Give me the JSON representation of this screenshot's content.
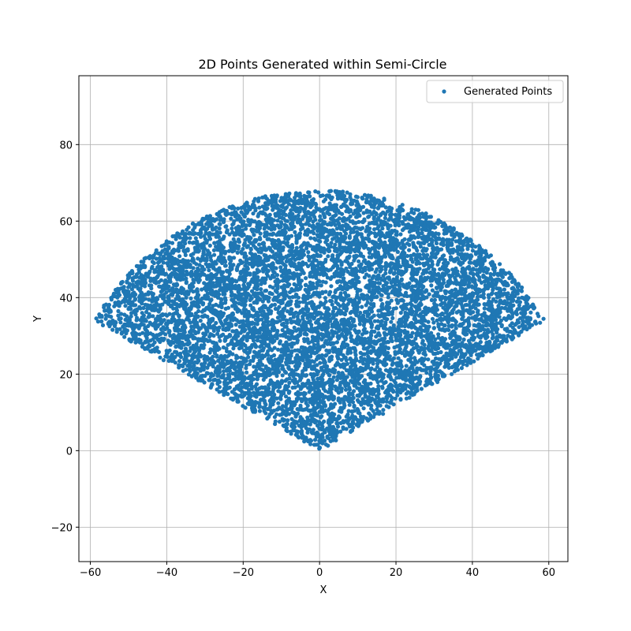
{
  "chart_data": {
    "type": "scatter",
    "title": "2D Points Generated within Semi-Circle",
    "xlabel": "X",
    "ylabel": "Y",
    "xlim": [
      -63,
      65
    ],
    "ylim": [
      -29,
      98
    ],
    "xticks": [
      -60,
      -40,
      -20,
      0,
      20,
      40,
      60
    ],
    "yticks": [
      -20,
      0,
      20,
      40,
      60,
      80
    ],
    "xtick_labels": [
      "−60",
      "−40",
      "−20",
      "0",
      "20",
      "40",
      "60"
    ],
    "ytick_labels": [
      "−20",
      "0",
      "20",
      "40",
      "60",
      "80"
    ],
    "grid": true,
    "legend_position": "upper right",
    "series": [
      {
        "name": "Generated Points",
        "color": "#1f77b4",
        "region": {
          "shape": "circular sector",
          "apex": [
            0,
            0
          ],
          "radius": 68,
          "angle_range_deg": [
            30,
            150
          ]
        },
        "point_count": 8000
      }
    ]
  }
}
